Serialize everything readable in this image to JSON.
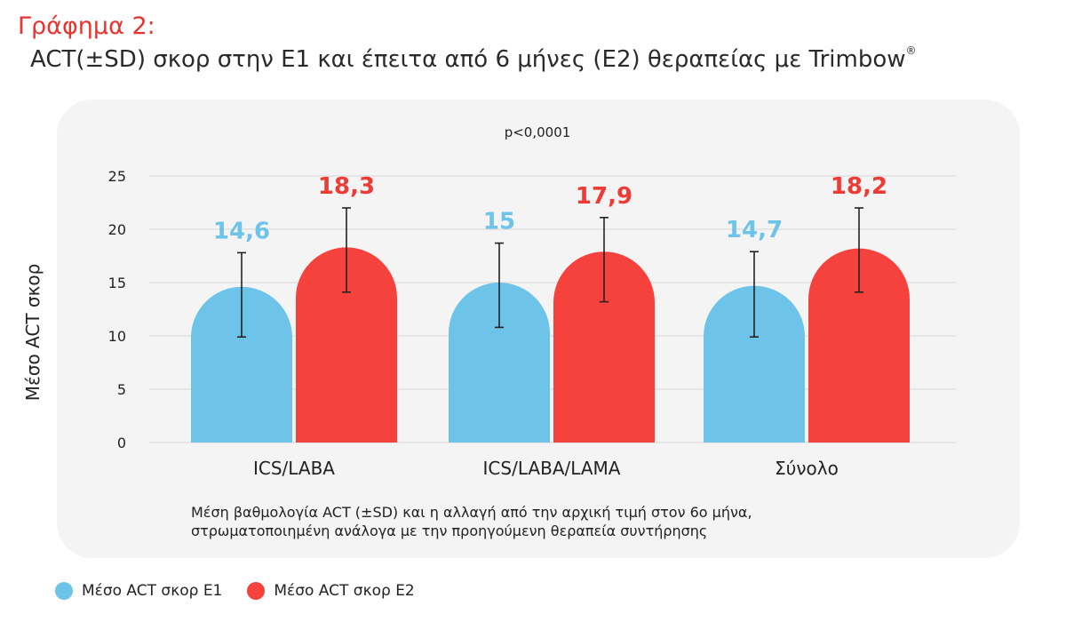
{
  "figure": {
    "label": "Γράφημα 2:",
    "title": "ACT(±SD) σκορ στην E1 και έπειτα από 6 μήνες (E2) θεραπείας με Trimbow",
    "title_mark": "®",
    "pvalue": "p<0,0001",
    "footnote_line1": "Μέση βαθμολογία ACT (±SD) και η αλλαγή από την αρχική τιμή στον 6ο μήνα,",
    "footnote_line2": "στρωματοποιημένη ανάλογα με την προηγούμενη θεραπεία συντήρησης"
  },
  "legend": [
    {
      "label": "Μέσο ACT σκορ E1",
      "color": "#6ec3e9"
    },
    {
      "label": "Μέσο ACT σκορ E2",
      "color": "#f5423d"
    }
  ],
  "chart_data": {
    "type": "bar",
    "ylabel": "Μέσο ACT σκορ",
    "xlabel": "",
    "ylim": [
      0,
      25
    ],
    "yticks": [
      0,
      5,
      10,
      15,
      20,
      25
    ],
    "grid": true,
    "categories": [
      "ICS/LABA",
      "ICS/LABA/LAMA",
      "Σύνολο"
    ],
    "series": [
      {
        "name": "Μέσο ACT σκορ E1",
        "color": "#6ec3e9",
        "label_color": "#6ec3e9",
        "values": [
          14.6,
          15,
          14.7
        ],
        "labels": [
          "14,6",
          "15",
          "14,7"
        ],
        "error_low": [
          9.9,
          10.8,
          9.9
        ],
        "error_high": [
          17.8,
          18.7,
          17.9
        ]
      },
      {
        "name": "Μέσο ACT σκορ E2",
        "color": "#f5423d",
        "label_color": "#ee3b35",
        "values": [
          18.3,
          17.9,
          18.2
        ],
        "labels": [
          "18,3",
          "17,9",
          "18,2"
        ],
        "error_low": [
          14.1,
          13.2,
          14.1
        ],
        "error_high": [
          22.0,
          21.1,
          22.0
        ]
      }
    ]
  }
}
